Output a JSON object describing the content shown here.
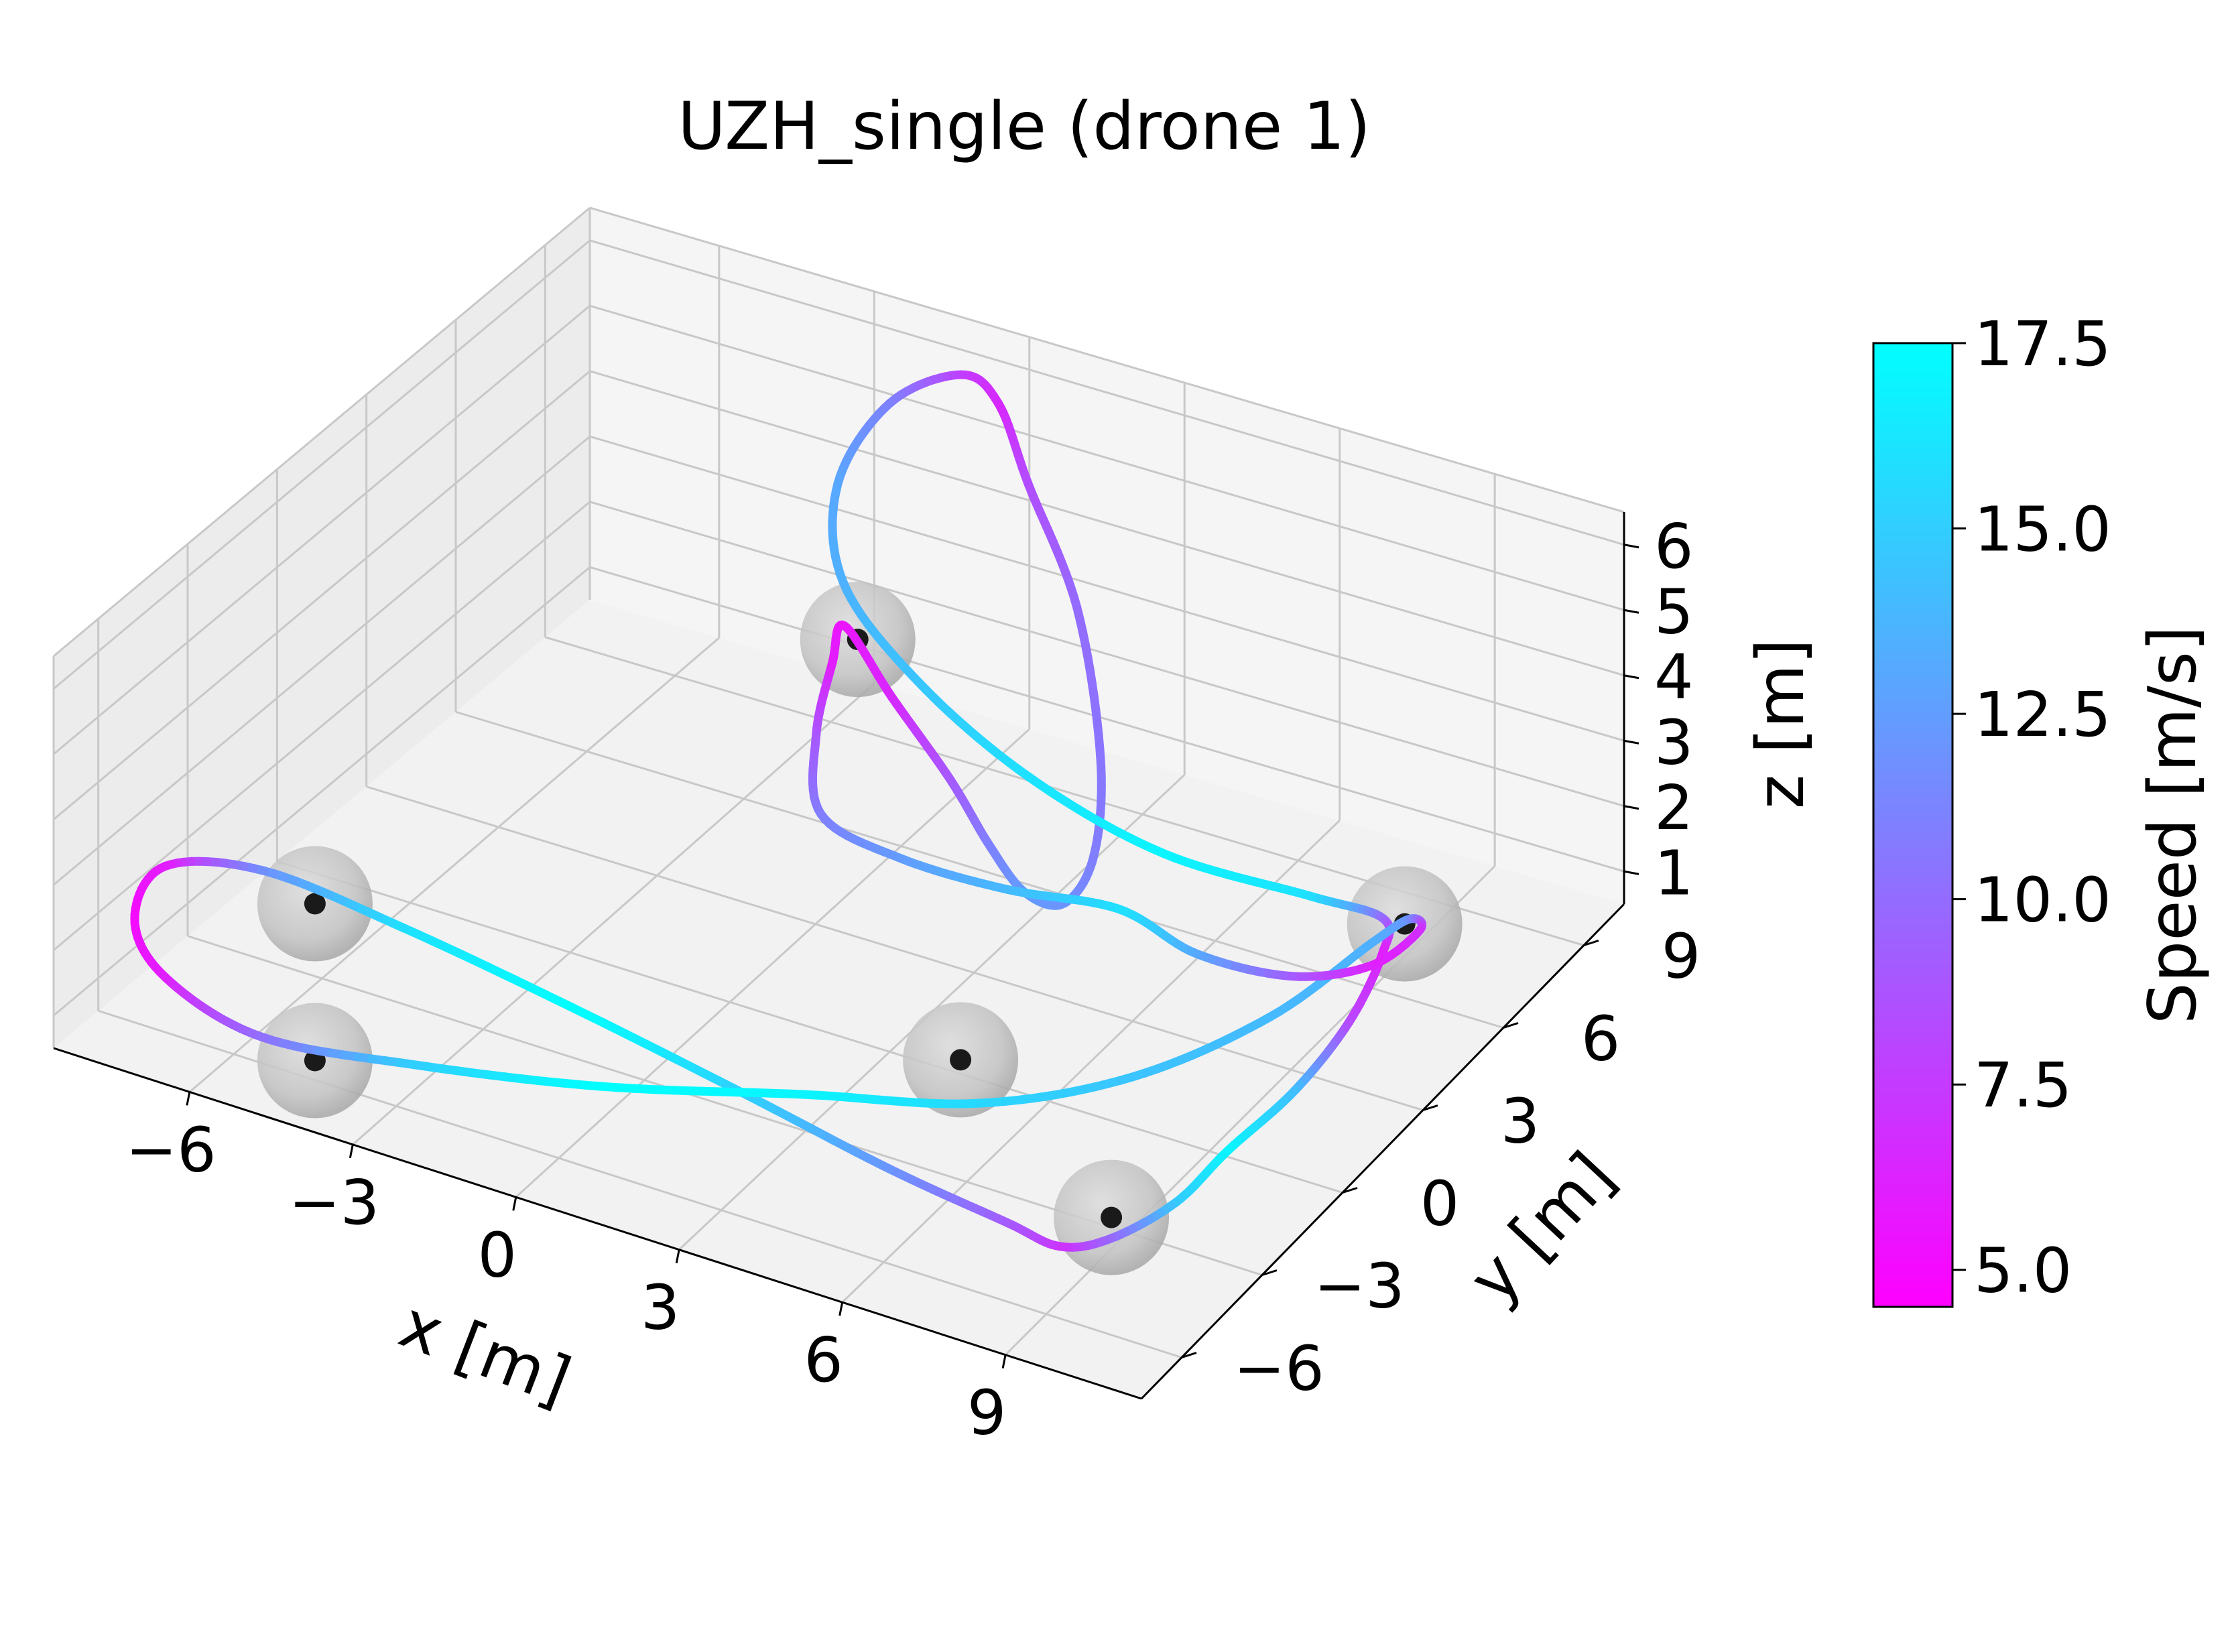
{
  "chart_data": {
    "type": "line",
    "title": "UZH_single (drone 1)",
    "xlabel": "x [m]",
    "ylabel": "y [m]",
    "zlabel": "z [m]",
    "x_ticks": [
      "−6",
      "−3",
      "0",
      "3",
      "6",
      "9"
    ],
    "y_ticks": [
      "−6",
      "−3",
      "0",
      "3",
      "6",
      "9"
    ],
    "z_ticks": [
      "1",
      "2",
      "3",
      "4",
      "5",
      "6"
    ],
    "xlim": [
      -8.5,
      11.5
    ],
    "ylim": [
      -7.5,
      10.5
    ],
    "zlim": [
      0.5,
      6.5
    ],
    "grid": true,
    "colorbar": {
      "label": "Speed [m/s]",
      "min": 4.5,
      "max": 17.5,
      "ticks": [
        "5.0",
        "7.5",
        "10.0",
        "12.5",
        "15.0",
        "17.5"
      ],
      "colormap": "cool",
      "color_low": "#ff00ff",
      "color_high": "#00ffff"
    },
    "gates": [
      {
        "x": -1.1,
        "y": 6.5,
        "z": 3.2
      },
      {
        "x": 9.2,
        "y": 6.8,
        "z": 1.2
      },
      {
        "x": 9.2,
        "y": -4.0,
        "z": 1.2
      },
      {
        "x": -4.5,
        "y": -6.0,
        "z": 3.2
      },
      {
        "x": -4.5,
        "y": -6.0,
        "z": 0.8
      },
      {
        "x": 4.8,
        "y": -0.9,
        "z": 1.2
      }
    ],
    "gate_color": "#1a1a1a",
    "gate_shell_color": "#bebebe",
    "trajectory": [
      {
        "x": -1.3,
        "y": 6.4,
        "z": 3.4,
        "speed": 5.5
      },
      {
        "x": 0.1,
        "y": 5.5,
        "z": 3.0,
        "speed": 6.5
      },
      {
        "x": 1.8,
        "y": 4.4,
        "z": 2.6,
        "speed": 9.0
      },
      {
        "x": 3.2,
        "y": 3.2,
        "z": 2.4,
        "speed": 11.0
      },
      {
        "x": 4.5,
        "y": 2.0,
        "z": 2.5,
        "speed": 12.5
      },
      {
        "x": 5.6,
        "y": 1.3,
        "z": 2.9,
        "speed": 12.0
      },
      {
        "x": 6.0,
        "y": 1.6,
        "z": 3.6,
        "speed": 11.0
      },
      {
        "x": 5.5,
        "y": 2.8,
        "z": 4.5,
        "speed": 10.5
      },
      {
        "x": 4.0,
        "y": 4.8,
        "z": 5.6,
        "speed": 10.0
      },
      {
        "x": 2.0,
        "y": 6.8,
        "z": 6.2,
        "speed": 8.5
      },
      {
        "x": 0.5,
        "y": 8.5,
        "z": 6.4,
        "speed": 6.5
      },
      {
        "x": -0.6,
        "y": 9.2,
        "z": 6.3,
        "speed": 7.5
      },
      {
        "x": -1.7,
        "y": 8.7,
        "z": 5.8,
        "speed": 11.0
      },
      {
        "x": -2.2,
        "y": 7.8,
        "z": 4.8,
        "speed": 13.0
      },
      {
        "x": -1.6,
        "y": 6.9,
        "z": 3.8,
        "speed": 13.5
      },
      {
        "x": 0.2,
        "y": 6.2,
        "z": 3.0,
        "speed": 14.5
      },
      {
        "x": 2.5,
        "y": 5.9,
        "z": 2.2,
        "speed": 16.0
      },
      {
        "x": 5.0,
        "y": 6.0,
        "z": 1.6,
        "speed": 17.0
      },
      {
        "x": 7.5,
        "y": 6.6,
        "z": 1.3,
        "speed": 16.0
      },
      {
        "x": 9.0,
        "y": 6.4,
        "z": 1.4,
        "speed": 10.0
      },
      {
        "x": 9.6,
        "y": 5.2,
        "z": 1.5,
        "speed": 6.0
      },
      {
        "x": 10.1,
        "y": 3.0,
        "z": 1.5,
        "speed": 8.0
      },
      {
        "x": 10.2,
        "y": 0.8,
        "z": 1.4,
        "speed": 14.0
      },
      {
        "x": 10.0,
        "y": -1.3,
        "z": 1.3,
        "speed": 17.0
      },
      {
        "x": 9.9,
        "y": -3.0,
        "z": 1.2,
        "speed": 15.0
      },
      {
        "x": 9.4,
        "y": -4.4,
        "z": 1.1,
        "speed": 10.0
      },
      {
        "x": 8.7,
        "y": -4.9,
        "z": 1.0,
        "speed": 7.0
      },
      {
        "x": 7.6,
        "y": -4.7,
        "z": 1.0,
        "speed": 9.0
      },
      {
        "x": 5.5,
        "y": -4.8,
        "z": 1.3,
        "speed": 12.0
      },
      {
        "x": 3.0,
        "y": -5.1,
        "z": 1.9,
        "speed": 15.0
      },
      {
        "x": 0.0,
        "y": -5.5,
        "z": 2.6,
        "speed": 17.5
      },
      {
        "x": -3.0,
        "y": -5.7,
        "z": 3.1,
        "speed": 16.0
      },
      {
        "x": -5.5,
        "y": -5.9,
        "z": 3.4,
        "speed": 12.0
      },
      {
        "x": -7.1,
        "y": -6.3,
        "z": 3.2,
        "speed": 6.0
      },
      {
        "x": -7.5,
        "y": -6.6,
        "z": 2.4,
        "speed": 5.0
      },
      {
        "x": -7.1,
        "y": -6.3,
        "z": 1.5,
        "speed": 6.0
      },
      {
        "x": -5.5,
        "y": -6.0,
        "z": 0.9,
        "speed": 10.0
      },
      {
        "x": -3.0,
        "y": -5.4,
        "z": 0.9,
        "speed": 15.0
      },
      {
        "x": 0.0,
        "y": -4.5,
        "z": 1.0,
        "speed": 17.5
      },
      {
        "x": 3.0,
        "y": -3.1,
        "z": 1.1,
        "speed": 17.0
      },
      {
        "x": 5.5,
        "y": -1.6,
        "z": 1.0,
        "speed": 15.5
      },
      {
        "x": 7.3,
        "y": 0.5,
        "z": 1.0,
        "speed": 14.5
      },
      {
        "x": 8.5,
        "y": 3.2,
        "z": 1.1,
        "speed": 14.0
      },
      {
        "x": 9.0,
        "y": 6.0,
        "z": 1.2,
        "speed": 13.5
      },
      {
        "x": 9.3,
        "y": 6.8,
        "z": 1.3,
        "speed": 12.0
      },
      {
        "x": 9.8,
        "y": 6.2,
        "z": 1.5,
        "speed": 7.0
      },
      {
        "x": 9.7,
        "y": 4.6,
        "z": 1.6,
        "speed": 6.0
      },
      {
        "x": 8.6,
        "y": 3.8,
        "z": 1.5,
        "speed": 9.0
      },
      {
        "x": 6.8,
        "y": 3.8,
        "z": 1.4,
        "speed": 13.0
      },
      {
        "x": 5.0,
        "y": 4.4,
        "z": 1.4,
        "speed": 16.0
      },
      {
        "x": 3.2,
        "y": 3.8,
        "z": 1.5,
        "speed": 14.0
      },
      {
        "x": 1.5,
        "y": 3.2,
        "z": 1.8,
        "speed": 12.5
      },
      {
        "x": 0.0,
        "y": 3.2,
        "z": 2.1,
        "speed": 11.0
      },
      {
        "x": -0.8,
        "y": 4.5,
        "z": 2.6,
        "speed": 9.0
      },
      {
        "x": -1.2,
        "y": 5.8,
        "z": 3.1,
        "speed": 6.0
      }
    ]
  }
}
